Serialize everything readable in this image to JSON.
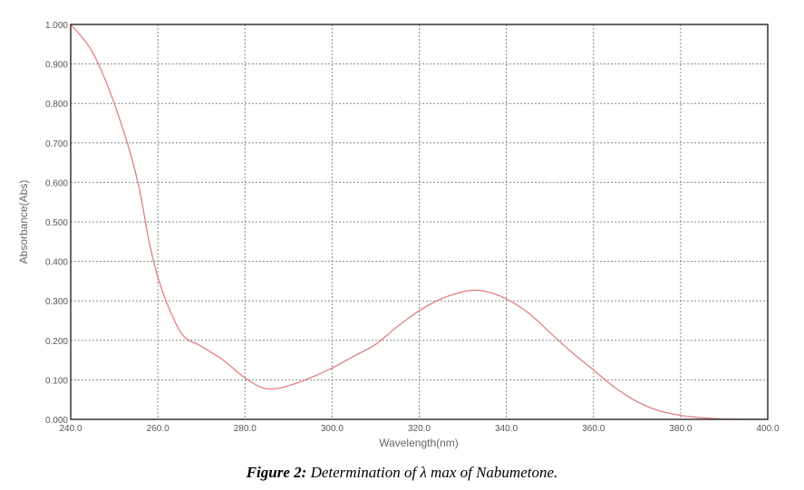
{
  "chart_data": {
    "type": "line",
    "xlabel": "Wavelength(nm)",
    "ylabel": "Absorbance(Abs)",
    "xlim": [
      240,
      400
    ],
    "ylim": [
      0,
      1
    ],
    "xticks": [
      "240.0",
      "260.0",
      "280.0",
      "300.0",
      "320.0",
      "340.0",
      "360.0",
      "380.0",
      "400.0"
    ],
    "yticks": [
      "0.000",
      "0.100",
      "0.200",
      "0.300",
      "0.400",
      "0.500",
      "0.600",
      "0.700",
      "0.800",
      "0.900",
      "1.000"
    ],
    "grid": true,
    "line_color": "#e08080",
    "series": [
      {
        "x": [
          240,
          245,
          250,
          255,
          258,
          260,
          263,
          266,
          270,
          275,
          280,
          284,
          287,
          290,
          295,
          300,
          305,
          310,
          315,
          320,
          325,
          330,
          333,
          336,
          340,
          345,
          350,
          355,
          360,
          365,
          370,
          375,
          380,
          385,
          390,
          400
        ],
        "y": [
          1.0,
          0.93,
          0.8,
          0.62,
          0.45,
          0.36,
          0.27,
          0.21,
          0.185,
          0.15,
          0.105,
          0.08,
          0.078,
          0.085,
          0.105,
          0.13,
          0.16,
          0.19,
          0.235,
          0.275,
          0.305,
          0.323,
          0.327,
          0.322,
          0.305,
          0.27,
          0.22,
          0.17,
          0.125,
          0.08,
          0.045,
          0.022,
          0.01,
          0.004,
          0.001,
          0.0
        ]
      }
    ]
  },
  "caption": {
    "label": "Figure 2:",
    "text": " Determination of λ max of Nabumetone."
  }
}
